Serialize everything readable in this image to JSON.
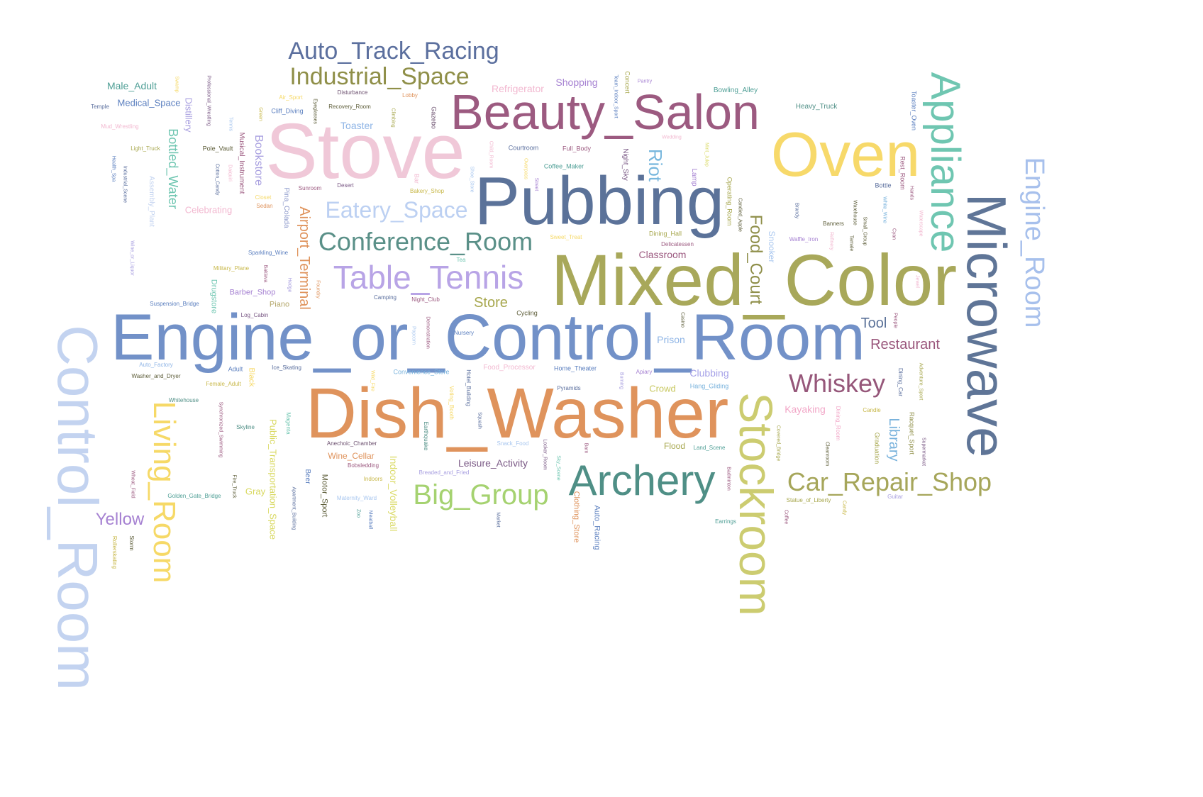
{
  "words": [
    {
      "text": "Engine_or_Control_Room",
      "color": "#7291c8"
    },
    {
      "text": "Mixed_Color",
      "color": "#a8a85a"
    },
    {
      "text": "Dish_Washer",
      "color": "#df935c"
    },
    {
      "text": "Pubbing",
      "color": "#5b7299"
    },
    {
      "text": "Stove",
      "color": "#f0c8d8"
    },
    {
      "text": "Beauty_Salon",
      "color": "#9c5a80"
    },
    {
      "text": "Oven",
      "color": "#f7d96a"
    },
    {
      "text": "Control_Room",
      "color": "#c3d3f0"
    },
    {
      "text": "Stockroom",
      "color": "#cccc70"
    },
    {
      "text": "Microwave",
      "color": "#5f7597"
    },
    {
      "text": "Appliance",
      "color": "#6fc6b1"
    },
    {
      "text": "Archery",
      "color": "#4f8f86"
    },
    {
      "text": "Living_Room",
      "color": "#f6d967"
    },
    {
      "text": "Engine_Room",
      "color": "#a7c0ec"
    },
    {
      "text": "Table_Tennis",
      "color": "#b8a4e6"
    },
    {
      "text": "Conference_Room",
      "color": "#5a9088"
    },
    {
      "text": "Auto_Track_Racing",
      "color": "#5b6f9e"
    },
    {
      "text": "Industrial_Space",
      "color": "#8f8f48"
    },
    {
      "text": "Eatery_Space",
      "color": "#bcd0f2"
    },
    {
      "text": "Big_Group",
      "color": "#a5d270"
    },
    {
      "text": "Car_Repair_Shop",
      "color": "#a6a65a"
    },
    {
      "text": "Whiskey",
      "color": "#96577a"
    },
    {
      "text": "Food_Court",
      "color": "#8f8f4a"
    },
    {
      "text": "Airport_Terminal",
      "color": "#df935c"
    },
    {
      "text": "Bottled_Water",
      "color": "#6fc6b1"
    },
    {
      "text": "Yellow",
      "color": "#a682d2"
    },
    {
      "text": "Riot",
      "color": "#78b7dd"
    },
    {
      "text": "Library",
      "color": "#78b2dc"
    },
    {
      "text": "Restaurant",
      "color": "#9a577c"
    },
    {
      "text": "Store",
      "color": "#a7a74d"
    },
    {
      "text": "Tool",
      "color": "#5b7299"
    },
    {
      "text": "Bookstore",
      "color": "#a9a0e0"
    },
    {
      "text": "Indoor_Volleyball",
      "color": "#dbdb6a"
    },
    {
      "text": "Public_Transportation_Space",
      "color": "#d8d85e"
    },
    {
      "text": "Leisure_Activity",
      "color": "#7b5a86"
    },
    {
      "text": "Prison",
      "color": "#8fb5e6"
    },
    {
      "text": "Clubbing",
      "color": "#a6a2e8"
    },
    {
      "text": "Crowd",
      "color": "#c8c860"
    },
    {
      "text": "Kayaking",
      "color": "#f2a8c8"
    },
    {
      "text": "Shopping",
      "color": "#a682d2"
    },
    {
      "text": "Refrigerator",
      "color": "#f2b8d0"
    },
    {
      "text": "Toaster",
      "color": "#8fb5e6"
    },
    {
      "text": "Male_Adult",
      "color": "#4f9f96"
    },
    {
      "text": "Medical_Space",
      "color": "#5b7fbf"
    },
    {
      "text": "Distillery",
      "color": "#a9a0e0"
    },
    {
      "text": "Celebrating",
      "color": "#f2b8d0"
    },
    {
      "text": "Classroom",
      "color": "#9c5a80"
    },
    {
      "text": "Snooker",
      "color": "#a9c7ef"
    },
    {
      "text": "Gray",
      "color": "#d8d85e"
    },
    {
      "text": "Wine_Cellar",
      "color": "#df935c"
    },
    {
      "text": "Drugstore",
      "color": "#6fc6b1"
    },
    {
      "text": "Barber_Shop",
      "color": "#a682d2"
    },
    {
      "text": "Piano",
      "color": "#b4a76a"
    },
    {
      "text": "Black",
      "color": "#f6d967"
    },
    {
      "text": "Motor_Sport",
      "color": "#5e5e3a"
    },
    {
      "text": "Flood",
      "color": "#a7a74d"
    },
    {
      "text": "Clothing_Store",
      "color": "#df935c"
    },
    {
      "text": "Auto_Racing",
      "color": "#5b7fbf"
    },
    {
      "text": "Pina_Colada",
      "color": "#8e9acb"
    },
    {
      "text": "Musical_Instrument",
      "color": "#9c5a80"
    },
    {
      "text": "Assembly_Plant",
      "color": "#c3d3f0"
    },
    {
      "text": "Night_Sky",
      "color": "#7b5a86"
    },
    {
      "text": "Lamp",
      "color": "#a682d2"
    },
    {
      "text": "Beer",
      "color": "#5b7fbf"
    },
    {
      "text": "Bowling_Alley",
      "color": "#4f9f96"
    },
    {
      "text": "Heavy_Truck",
      "color": "#4f8f86"
    },
    {
      "text": "Operating_Room",
      "color": "#a7a74d"
    },
    {
      "text": "Graduation",
      "color": "#a7a74d"
    },
    {
      "text": "Racquet_Sport",
      "color": "#8f8f48"
    },
    {
      "text": "Rest_Room",
      "color": "#9c5a80"
    },
    {
      "text": "Toaster_Oven",
      "color": "#5b7fbf"
    },
    {
      "text": "Concert",
      "color": "#a7a74d"
    },
    {
      "text": "Gazebo",
      "color": "#6b4f6e"
    },
    {
      "text": "Cliff_Diving",
      "color": "#5b7fbf"
    },
    {
      "text": "Full_Body",
      "color": "#9c5a80"
    },
    {
      "text": "Courtroom",
      "color": "#5b6f9e"
    },
    {
      "text": "Coffee_Maker",
      "color": "#4f9f96"
    },
    {
      "text": "Dining_Hall",
      "color": "#a7a74d"
    },
    {
      "text": "Sweet_Treat",
      "color": "#f6d967"
    },
    {
      "text": "Hang_Gliding",
      "color": "#78b2dc"
    },
    {
      "text": "Delicatessen",
      "color": "#9c5a80"
    },
    {
      "text": "Sparkling_Wine",
      "color": "#5b7fbf"
    },
    {
      "text": "Military_Plane",
      "color": "#c8b84a"
    },
    {
      "text": "Suspension_Bridge",
      "color": "#5b7fbf"
    },
    {
      "text": "Log_Cabin",
      "color": "#7b5a86"
    },
    {
      "text": "Ice_Skating",
      "color": "#5b6f9e"
    },
    {
      "text": "Adult",
      "color": "#5b7fbf"
    },
    {
      "text": "Female_Adult",
      "color": "#c8b84a"
    },
    {
      "text": "Washer_and_Dryer",
      "color": "#5e5e3a"
    },
    {
      "text": "Auto_Factory",
      "color": "#8fb5e6"
    },
    {
      "text": "Whitehouse",
      "color": "#4f8f86"
    },
    {
      "text": "Skyline",
      "color": "#4f8f86"
    },
    {
      "text": "Golden_Gate_Bridge",
      "color": "#4f9f96"
    },
    {
      "text": "Convenience_Store",
      "color": "#78b2dc"
    },
    {
      "text": "Food_Processor",
      "color": "#f2b8d0"
    },
    {
      "text": "Home_Theater",
      "color": "#5b7fbf"
    },
    {
      "text": "Nursery",
      "color": "#5b7fbf"
    },
    {
      "text": "Cycling",
      "color": "#5e5e3a"
    },
    {
      "text": "Camping",
      "color": "#5b6f9e"
    },
    {
      "text": "Night_Club",
      "color": "#9c5a80"
    },
    {
      "text": "Tea",
      "color": "#6fc6b1"
    },
    {
      "text": "Bobsledding",
      "color": "#9c5a80"
    },
    {
      "text": "Indoors",
      "color": "#c8b84a"
    },
    {
      "text": "Anechoic_Chamber",
      "color": "#6b4f6e"
    },
    {
      "text": "Breaded_and_Fried",
      "color": "#a9a0e0"
    },
    {
      "text": "Maternity_Ward",
      "color": "#a9c7ef"
    },
    {
      "text": "Snack_Food",
      "color": "#a9c7ef"
    },
    {
      "text": "Pyramids",
      "color": "#5b6f9e"
    },
    {
      "text": "Apiary",
      "color": "#a682d2"
    },
    {
      "text": "Land_Scene",
      "color": "#4f9f96"
    },
    {
      "text": "Statue_of_Liberty",
      "color": "#a7a74d"
    },
    {
      "text": "Earrings",
      "color": "#4f9f96"
    },
    {
      "text": "Guitar",
      "color": "#a9a0e0"
    },
    {
      "text": "Candle",
      "color": "#c8b84a"
    },
    {
      "text": "Waffle_Iron",
      "color": "#a682d2"
    },
    {
      "text": "Banners",
      "color": "#5e5e3a"
    },
    {
      "text": "Bottle",
      "color": "#5b6f9e"
    },
    {
      "text": "Pole_Vault",
      "color": "#5e5e3a"
    },
    {
      "text": "Light_Truck",
      "color": "#a7a74d"
    },
    {
      "text": "Temple",
      "color": "#5b6f9e"
    },
    {
      "text": "Mud_Wrestling",
      "color": "#f2b8d0"
    },
    {
      "text": "Sunroom",
      "color": "#9c5a80"
    },
    {
      "text": "Desert",
      "color": "#7b5a86"
    },
    {
      "text": "Closet",
      "color": "#f6d967"
    },
    {
      "text": "Sedan",
      "color": "#df935c"
    },
    {
      "text": "Air_Sport",
      "color": "#f6d967"
    },
    {
      "text": "Disturbance",
      "color": "#6b4f6e"
    },
    {
      "text": "Recovery_Room",
      "color": "#5e5e3a"
    },
    {
      "text": "Lobby",
      "color": "#df935c"
    },
    {
      "text": "Bakery_Shop",
      "color": "#c8b84a"
    },
    {
      "text": "Pantry",
      "color": "#a682d2"
    },
    {
      "text": "Wedding",
      "color": "#f2b8d0"
    },
    {
      "text": "Swamp",
      "color": "#f6d967"
    },
    {
      "text": "Professional_Wrestling",
      "color": "#7b5a86"
    },
    {
      "text": "Tennis",
      "color": "#a9c7ef"
    },
    {
      "text": "Cotton_Candy",
      "color": "#5b6f9e"
    },
    {
      "text": "Daiquiri",
      "color": "#f2b8d0"
    },
    {
      "text": "Green",
      "color": "#c8b84a"
    },
    {
      "text": "Eyeglasses",
      "color": "#5e5e3a"
    },
    {
      "text": "Climbing",
      "color": "#a7a74d"
    },
    {
      "text": "Child_Room",
      "color": "#f2b8d0"
    },
    {
      "text": "Overpass",
      "color": "#f6d967"
    },
    {
      "text": "Street",
      "color": "#a682d2"
    },
    {
      "text": "Shoe_Store",
      "color": "#a9c7ef"
    },
    {
      "text": "Bar",
      "color": "#f2b8d0"
    },
    {
      "text": "Team_Indoor_Sport",
      "color": "#5b7fbf"
    },
    {
      "text": "Mint_Julep",
      "color": "#dbdb6a"
    },
    {
      "text": "Candied_Apple",
      "color": "#5e5e3a"
    },
    {
      "text": "Brandy",
      "color": "#5b6f9e"
    },
    {
      "text": "Warehouse",
      "color": "#5e5e3a"
    },
    {
      "text": "Tamale",
      "color": "#5e5e3a"
    },
    {
      "text": "Small_Group",
      "color": "#5e5e3a"
    },
    {
      "text": "White_Wine",
      "color": "#78b2dc"
    },
    {
      "text": "Refinery",
      "color": "#f2b8d0"
    },
    {
      "text": "Cyan",
      "color": "#9c5a80"
    },
    {
      "text": "Hands",
      "color": "#9c5a80"
    },
    {
      "text": "Waterscape",
      "color": "#f2b8d0"
    },
    {
      "text": "Jewel",
      "color": "#f2b8d0"
    },
    {
      "text": "People",
      "color": "#9c5a80"
    },
    {
      "text": "Health_Spa",
      "color": "#5b7fbf"
    },
    {
      "text": "Industrial_Scene",
      "color": "#5b6f9e"
    },
    {
      "text": "Wine_or_Liquor",
      "color": "#a9a0e0"
    },
    {
      "text": "Baklava",
      "color": "#9c5a80"
    },
    {
      "text": "Hedge",
      "color": "#a9a0e0"
    },
    {
      "text": "Foundry",
      "color": "#df935c"
    },
    {
      "text": "Casino",
      "color": "#5e5e3a"
    },
    {
      "text": "Demonstration",
      "color": "#9c5a80"
    },
    {
      "text": "Popcorn",
      "color": "#a9c7ef"
    },
    {
      "text": "Wild_Fire",
      "color": "#f6d967"
    },
    {
      "text": "Voting_Booth",
      "color": "#f6d967"
    },
    {
      "text": "Hotel_Building",
      "color": "#5b6f9e"
    },
    {
      "text": "Squash",
      "color": "#5b6f9e"
    },
    {
      "text": "Earthquake",
      "color": "#4f8f86"
    },
    {
      "text": "Burning",
      "color": "#a9a0e0"
    },
    {
      "text": "Locker_Room",
      "color": "#7b5a86"
    },
    {
      "text": "Barn",
      "color": "#9c5a80"
    },
    {
      "text": "Sky_Scene",
      "color": "#6fc6b1"
    },
    {
      "text": "Market",
      "color": "#5b6f9e"
    },
    {
      "text": "Zoo",
      "color": "#4f9f96"
    },
    {
      "text": "Meatball",
      "color": "#5b7fbf"
    },
    {
      "text": "Apartment_Building",
      "color": "#5b6f9e"
    },
    {
      "text": "Magenta",
      "color": "#6fc6b1"
    },
    {
      "text": "Synchronized_Swimming",
      "color": "#9c5a80"
    },
    {
      "text": "Fire_Truck",
      "color": "#5e5e3a"
    },
    {
      "text": "Wheat_Field",
      "color": "#9c5a80"
    },
    {
      "text": "Rollerskating",
      "color": "#c8b84a"
    },
    {
      "text": "Storm",
      "color": "#5e5e3a"
    },
    {
      "text": "Dining_Car",
      "color": "#5b6f9e"
    },
    {
      "text": "Adventure_Sport",
      "color": "#a7a74d"
    },
    {
      "text": "Supermarket",
      "color": "#7b5a86"
    },
    {
      "text": "Dining_Room",
      "color": "#f2a8c8"
    },
    {
      "text": "Cleanroom",
      "color": "#5e5e3a"
    },
    {
      "text": "Covered_Bridge",
      "color": "#a7a74d"
    },
    {
      "text": "Coffee",
      "color": "#9c5a80"
    },
    {
      "text": "Candy",
      "color": "#c8b84a"
    },
    {
      "text": "Badminton",
      "color": "#9c5a80"
    }
  ]
}
